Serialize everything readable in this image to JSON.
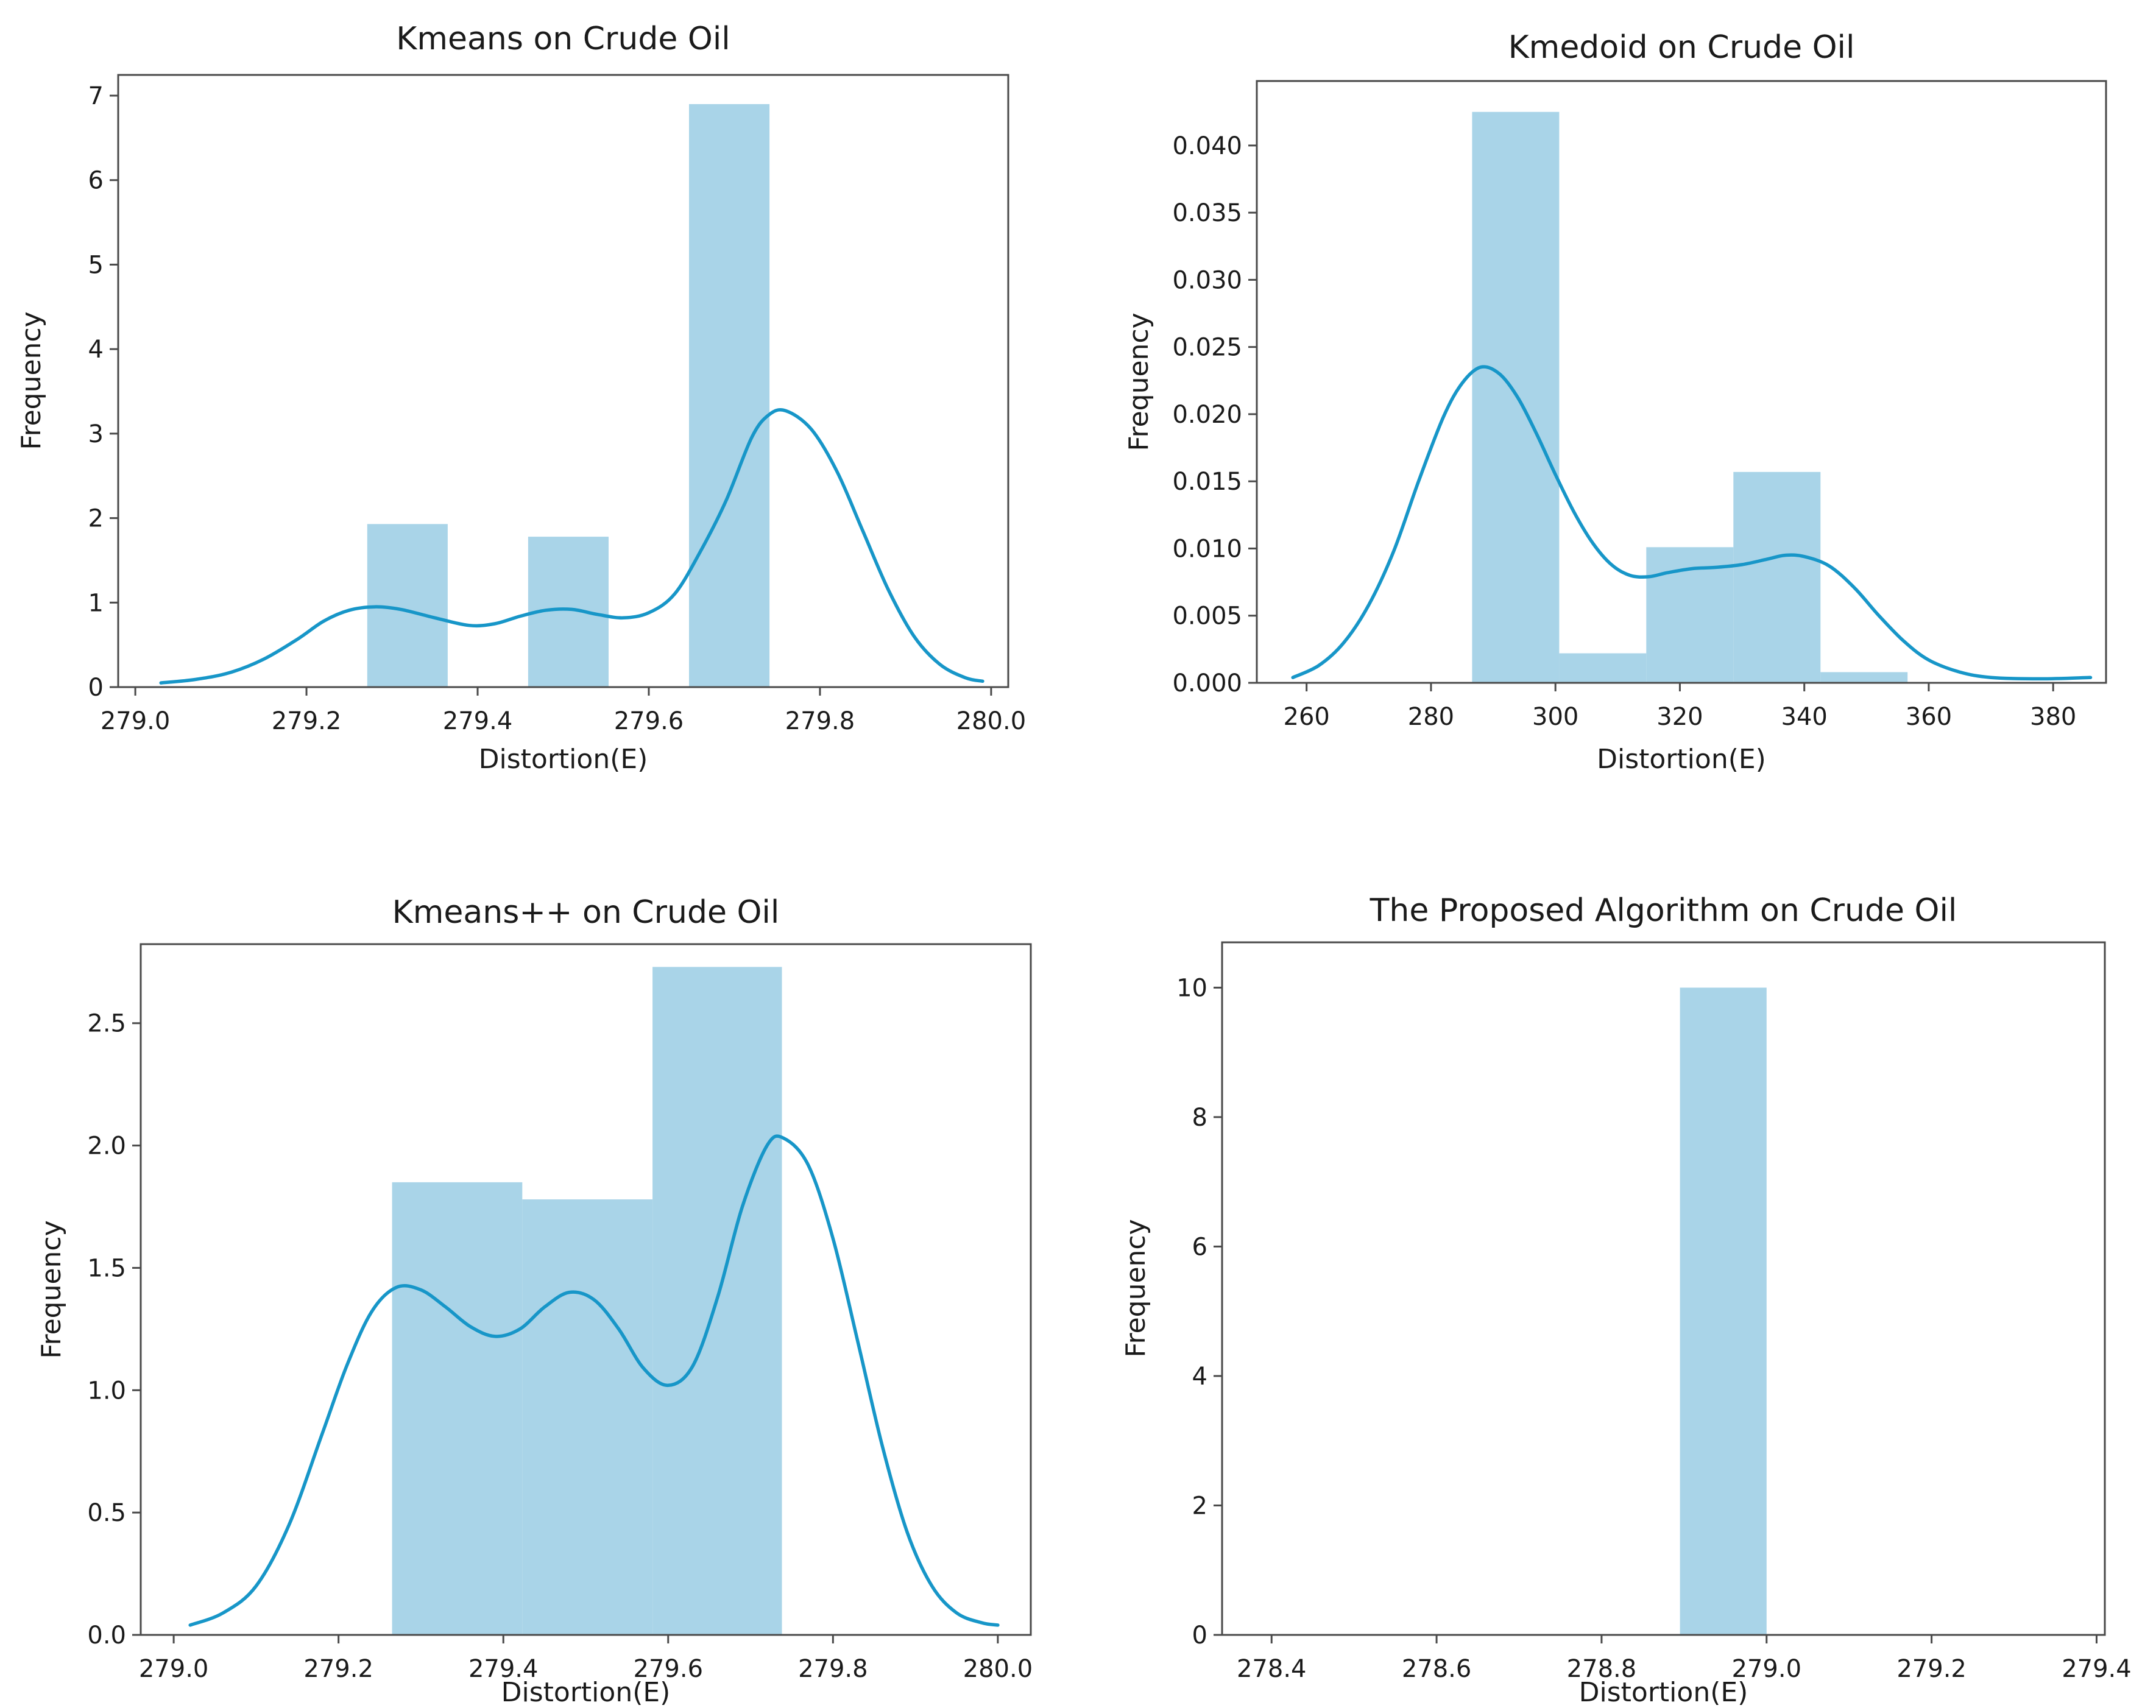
{
  "figure": {
    "background": "#ffffff",
    "colors": {
      "bar_fill": "#a9d4e8",
      "kde_line": "#1796c8",
      "axis": "#4a4a4a",
      "text": "#1a1a1a"
    }
  },
  "chart_data": [
    {
      "type": "bar",
      "subtype": "histogram-with-kde",
      "title": "Kmeans on Crude Oil",
      "xlabel": "Distortion(E)",
      "ylabel": "Frequency",
      "xlim": [
        278.98,
        280.02
      ],
      "ylim": [
        0,
        7.245
      ],
      "grid": false,
      "legend": null,
      "xticks": {
        "values": [
          279.0,
          279.2,
          279.4,
          279.6,
          279.8,
          280.0
        ],
        "labels": [
          "279.0",
          "279.2",
          "279.4",
          "279.6",
          "279.8",
          "280.0"
        ]
      },
      "yticks": {
        "values": [
          0,
          1,
          2,
          3,
          4,
          5,
          6,
          7
        ],
        "labels": [
          "0",
          "1",
          "2",
          "3",
          "4",
          "5",
          "6",
          "7"
        ]
      },
      "bars": [
        {
          "x0": 279.271,
          "x1": 279.365,
          "h": 1.93
        },
        {
          "x0": 279.459,
          "x1": 279.553,
          "h": 1.78
        },
        {
          "x0": 279.647,
          "x1": 279.741,
          "h": 6.9
        }
      ],
      "kde": [
        [
          279.03,
          0.05
        ],
        [
          279.07,
          0.09
        ],
        [
          279.11,
          0.17
        ],
        [
          279.15,
          0.33
        ],
        [
          279.19,
          0.57
        ],
        [
          279.22,
          0.78
        ],
        [
          279.25,
          0.91
        ],
        [
          279.28,
          0.95
        ],
        [
          279.31,
          0.92
        ],
        [
          279.35,
          0.82
        ],
        [
          279.39,
          0.73
        ],
        [
          279.42,
          0.75
        ],
        [
          279.45,
          0.84
        ],
        [
          279.48,
          0.91
        ],
        [
          279.51,
          0.92
        ],
        [
          279.54,
          0.86
        ],
        [
          279.57,
          0.82
        ],
        [
          279.6,
          0.88
        ],
        [
          279.63,
          1.1
        ],
        [
          279.66,
          1.6
        ],
        [
          279.69,
          2.2
        ],
        [
          279.72,
          2.95
        ],
        [
          279.74,
          3.22
        ],
        [
          279.76,
          3.27
        ],
        [
          279.79,
          3.05
        ],
        [
          279.82,
          2.55
        ],
        [
          279.85,
          1.85
        ],
        [
          279.88,
          1.15
        ],
        [
          279.91,
          0.6
        ],
        [
          279.94,
          0.27
        ],
        [
          279.97,
          0.11
        ],
        [
          279.99,
          0.07
        ]
      ]
    },
    {
      "type": "bar",
      "subtype": "histogram-with-kde",
      "title": "Kmedoid on Crude Oil",
      "xlabel": "Distortion(E)",
      "ylabel": "Frequency",
      "xlim": [
        252,
        388.5
      ],
      "ylim": [
        0,
        0.0448
      ],
      "grid": false,
      "legend": null,
      "xticks": {
        "values": [
          260,
          280,
          300,
          320,
          340,
          360,
          380
        ],
        "labels": [
          "260",
          "280",
          "300",
          "320",
          "340",
          "360",
          "380"
        ]
      },
      "yticks": {
        "values": [
          0.0,
          0.005,
          0.01,
          0.015,
          0.02,
          0.025,
          0.03,
          0.035,
          0.04
        ],
        "labels": [
          "0.000",
          "0.005",
          "0.010",
          "0.015",
          "0.020",
          "0.025",
          "0.030",
          "0.035",
          "0.040"
        ]
      },
      "bars": [
        {
          "x0": 286.6,
          "x1": 300.6,
          "h": 0.0425
        },
        {
          "x0": 300.6,
          "x1": 314.6,
          "h": 0.0022
        },
        {
          "x0": 314.6,
          "x1": 328.6,
          "h": 0.0101
        },
        {
          "x0": 328.6,
          "x1": 342.6,
          "h": 0.0157
        },
        {
          "x0": 342.6,
          "x1": 356.6,
          "h": 0.0008
        }
      ],
      "kde": [
        [
          257.8,
          0.0004
        ],
        [
          262,
          0.0013
        ],
        [
          266,
          0.003
        ],
        [
          270,
          0.0058
        ],
        [
          274,
          0.0098
        ],
        [
          278,
          0.015
        ],
        [
          282,
          0.0198
        ],
        [
          285,
          0.0223
        ],
        [
          288,
          0.0235
        ],
        [
          291,
          0.023
        ],
        [
          294,
          0.0212
        ],
        [
          297,
          0.0185
        ],
        [
          300,
          0.0155
        ],
        [
          303,
          0.0127
        ],
        [
          306,
          0.0104
        ],
        [
          309,
          0.0088
        ],
        [
          312,
          0.008
        ],
        [
          315,
          0.0079
        ],
        [
          318,
          0.0082
        ],
        [
          322,
          0.0085
        ],
        [
          326,
          0.0086
        ],
        [
          330,
          0.0088
        ],
        [
          334,
          0.0092
        ],
        [
          337,
          0.0095
        ],
        [
          340,
          0.0094
        ],
        [
          344,
          0.0087
        ],
        [
          348,
          0.0071
        ],
        [
          352,
          0.005
        ],
        [
          356,
          0.0031
        ],
        [
          360,
          0.0017
        ],
        [
          365,
          0.0008
        ],
        [
          370,
          0.0004
        ],
        [
          378,
          0.0003
        ],
        [
          386,
          0.0004
        ]
      ]
    },
    {
      "type": "bar",
      "subtype": "histogram-with-kde",
      "title": "Kmeans++ on Crude Oil",
      "xlabel": "Distortion(E)",
      "ylabel": "Frequency",
      "xlim": [
        278.96,
        280.04
      ],
      "ylim": [
        0,
        2.823
      ],
      "grid": false,
      "legend": null,
      "xticks": {
        "values": [
          279.0,
          279.2,
          279.4,
          279.6,
          279.8,
          280.0
        ],
        "labels": [
          "279.0",
          "279.2",
          "279.4",
          "279.6",
          "279.8",
          "280.0"
        ]
      },
      "yticks": {
        "values": [
          0.0,
          0.5,
          1.0,
          1.5,
          2.0,
          2.5
        ],
        "labels": [
          "0.0",
          "0.5",
          "1.0",
          "1.5",
          "2.0",
          "2.5"
        ]
      },
      "bars": [
        {
          "x0": 279.265,
          "x1": 279.423,
          "h": 1.85
        },
        {
          "x0": 279.423,
          "x1": 279.581,
          "h": 1.78
        },
        {
          "x0": 279.581,
          "x1": 279.738,
          "h": 2.73
        }
      ],
      "kde": [
        [
          279.02,
          0.04
        ],
        [
          279.06,
          0.09
        ],
        [
          279.1,
          0.2
        ],
        [
          279.14,
          0.45
        ],
        [
          279.18,
          0.82
        ],
        [
          279.21,
          1.1
        ],
        [
          279.24,
          1.32
        ],
        [
          279.27,
          1.42
        ],
        [
          279.3,
          1.41
        ],
        [
          279.33,
          1.34
        ],
        [
          279.36,
          1.26
        ],
        [
          279.39,
          1.22
        ],
        [
          279.42,
          1.25
        ],
        [
          279.45,
          1.34
        ],
        [
          279.48,
          1.4
        ],
        [
          279.51,
          1.37
        ],
        [
          279.54,
          1.25
        ],
        [
          279.57,
          1.09
        ],
        [
          279.6,
          1.02
        ],
        [
          279.63,
          1.1
        ],
        [
          279.66,
          1.38
        ],
        [
          279.69,
          1.75
        ],
        [
          279.72,
          2.0
        ],
        [
          279.74,
          2.03
        ],
        [
          279.77,
          1.92
        ],
        [
          279.8,
          1.62
        ],
        [
          279.83,
          1.2
        ],
        [
          279.86,
          0.77
        ],
        [
          279.89,
          0.42
        ],
        [
          279.92,
          0.2
        ],
        [
          279.95,
          0.09
        ],
        [
          279.98,
          0.05
        ],
        [
          280.0,
          0.04
        ]
      ]
    },
    {
      "type": "bar",
      "subtype": "histogram",
      "title": "The Proposed Algorithm on Crude Oil",
      "xlabel": "Distortion(E)",
      "ylabel": "Frequency",
      "xlim": [
        278.34,
        279.41
      ],
      "ylim": [
        0,
        10.7
      ],
      "grid": false,
      "legend": null,
      "xticks": {
        "values": [
          278.4,
          278.6,
          278.8,
          279.0,
          279.2,
          279.4
        ],
        "labels": [
          "278.4",
          "278.6",
          "278.8",
          "279.0",
          "279.2",
          "279.4"
        ]
      },
      "yticks": {
        "values": [
          0,
          2,
          4,
          6,
          8,
          10
        ],
        "labels": [
          "0",
          "2",
          "4",
          "6",
          "8",
          "10"
        ]
      },
      "bars": [
        {
          "x0": 278.895,
          "x1": 279.0,
          "h": 10
        }
      ],
      "kde": []
    }
  ]
}
